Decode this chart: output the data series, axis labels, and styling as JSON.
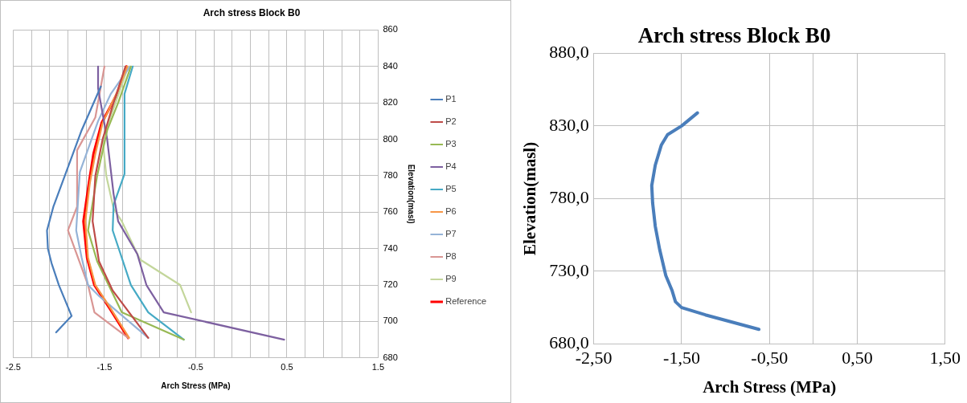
{
  "chart_data": [
    {
      "type": "line",
      "title": "Arch stress Block B0",
      "xlabel": "Arch Stress (MPa)",
      "y2label": "Elevation(masl)",
      "xlim": [
        -2.5,
        1.5
      ],
      "xticks": [
        -2.5,
        {
          "value": -2.3,
          "label": null
        },
        {
          "value": -2.1,
          "label": null
        },
        {
          "value": -1.9,
          "label": null
        },
        {
          "value": -1.7,
          "label": null
        },
        -1.5,
        {
          "value": -1.3,
          "label": null
        },
        {
          "value": -1.1,
          "label": null
        },
        {
          "value": -0.9,
          "label": null
        },
        {
          "value": -0.7,
          "label": null
        },
        -0.5,
        {
          "value": -0.3,
          "label": null
        },
        {
          "value": -0.1,
          "label": null
        },
        {
          "value": 0.1,
          "label": null
        },
        {
          "value": 0.3,
          "label": null
        },
        0.5,
        {
          "value": 0.7,
          "label": null
        },
        {
          "value": 0.9,
          "label": null
        },
        {
          "value": 1.1,
          "label": null
        },
        {
          "value": 1.3,
          "label": null
        },
        1.5
      ],
      "y2lim": [
        680,
        860
      ],
      "y2ticks": [
        680,
        700,
        720,
        740,
        760,
        780,
        800,
        820,
        840,
        860
      ],
      "grid": true,
      "legend": "right",
      "marker": "none",
      "series": [
        {
          "name": "P1",
          "color": "#4a7ebb",
          "axis": "y2",
          "x": [
            -1.54,
            -1.75,
            -2.06,
            -2.13,
            -2.12,
            -2.08,
            -2.0,
            -1.86,
            -2.03
          ],
          "values": [
            829,
            805,
            763,
            750,
            740,
            732,
            720,
            703,
            694
          ]
        },
        {
          "name": "P2",
          "color": "#be4b48",
          "axis": "y2",
          "x": [
            -1.27,
            -1.4,
            -1.52,
            -1.6,
            -1.63,
            -1.56,
            -1.41,
            -1.02
          ],
          "values": [
            840,
            820,
            800,
            780,
            755,
            733,
            717,
            691
          ]
        },
        {
          "name": "P3",
          "color": "#98b954",
          "axis": "y2",
          "x": [
            -1.21,
            -1.35,
            -1.47,
            -1.58,
            -1.68,
            -1.58,
            -1.31,
            -0.63
          ],
          "values": [
            840,
            820,
            805,
            780,
            750,
            733,
            705,
            690
          ]
        },
        {
          "name": "P4",
          "color": "#7d60a0",
          "axis": "y2",
          "x": [
            -1.57,
            -1.57,
            -1.47,
            -1.4,
            -1.35,
            -1.14,
            -1.04,
            -0.85,
            0.47
          ],
          "values": [
            840,
            828,
            800,
            770,
            755,
            737,
            720,
            705,
            690
          ]
        },
        {
          "name": "P5",
          "color": "#46aac5",
          "axis": "y2",
          "x": [
            -1.19,
            -1.28,
            -1.28,
            -1.4,
            -1.41,
            -1.21,
            -1.02,
            -0.63
          ],
          "values": [
            840,
            825,
            781,
            764,
            750,
            720,
            705,
            690
          ]
        },
        {
          "name": "P6",
          "color": "#f79646",
          "axis": "y2",
          "x": [
            -1.25,
            -1.37,
            -1.52,
            -1.6,
            -1.66,
            -1.71,
            -1.68,
            -1.6,
            -1.43,
            -1.23
          ],
          "values": [
            840,
            825,
            809,
            792,
            776,
            755,
            735,
            720,
            707,
            691
          ]
        },
        {
          "name": "P7",
          "color": "#95b3d7",
          "axis": "y2",
          "x": [
            -1.22,
            -1.43,
            -1.57,
            -1.77,
            -1.81,
            -1.75,
            -1.68,
            -1.56,
            -1.02
          ],
          "values": [
            840,
            825,
            810,
            782,
            750,
            735,
            720,
            714,
            691
          ]
        },
        {
          "name": "P8",
          "color": "#d99694",
          "axis": "y2",
          "x": [
            -1.5,
            -1.6,
            -1.8,
            -1.8,
            -1.9,
            -1.68,
            -1.61,
            -1.24
          ],
          "values": [
            840,
            812,
            794,
            763,
            750,
            720,
            705,
            691
          ]
        },
        {
          "name": "P9",
          "color": "#c3d69b",
          "axis": "y2",
          "x": [
            -1.24,
            -1.52,
            -1.48,
            -1.4,
            -1.31,
            -1.11,
            -0.67,
            -0.55
          ],
          "values": [
            840,
            800,
            780,
            762,
            755,
            734,
            720,
            705
          ]
        },
        {
          "name": "Reference",
          "color": "#ff0000",
          "axis": "y2",
          "x": [
            -1.26,
            -1.36,
            -1.53,
            -1.62,
            -1.67,
            -1.73,
            -1.69,
            -1.61,
            -1.44,
            -1.24
          ],
          "values": [
            840,
            825,
            809,
            792,
            776,
            755,
            735,
            720,
            707,
            691
          ]
        }
      ]
    },
    {
      "type": "line",
      "title": "Arch stress Block B0",
      "xlabel": "Arch Stress (MPa)",
      "ylabel": "Elevation(masl)",
      "xlim": [
        -2.5,
        1.5
      ],
      "xticks": [
        {
          "value": -2.5,
          "label": "-2,50"
        },
        {
          "value": -1.5,
          "label": "-1,50"
        },
        {
          "value": -0.5,
          "label": "-0,50"
        },
        {
          "value": 0,
          "label": null
        },
        {
          "value": 0.5,
          "label": "0,50"
        },
        {
          "value": 1.5,
          "label": "1,50"
        }
      ],
      "ylim": [
        680,
        880
      ],
      "yticks": [
        {
          "value": 680,
          "label": "680,0"
        },
        {
          "value": 730,
          "label": "730,0"
        },
        {
          "value": 780,
          "label": "780,0"
        },
        {
          "value": 830,
          "label": "830,0"
        },
        {
          "value": 880,
          "label": "880,0"
        }
      ],
      "grid": true,
      "marker": "none",
      "series": [
        {
          "color": "#4a7ebb",
          "x": [
            -1.32,
            -1.5,
            -1.66,
            -1.73,
            -1.8,
            -1.84,
            -1.83,
            -1.8,
            -1.75,
            -1.68,
            -1.61,
            -1.57,
            -1.5,
            -1.23,
            -0.62
          ],
          "values": [
            839,
            830,
            824,
            817,
            803,
            789,
            777,
            761,
            745,
            727,
            717,
            709,
            705,
            700,
            690
          ]
        }
      ]
    }
  ]
}
